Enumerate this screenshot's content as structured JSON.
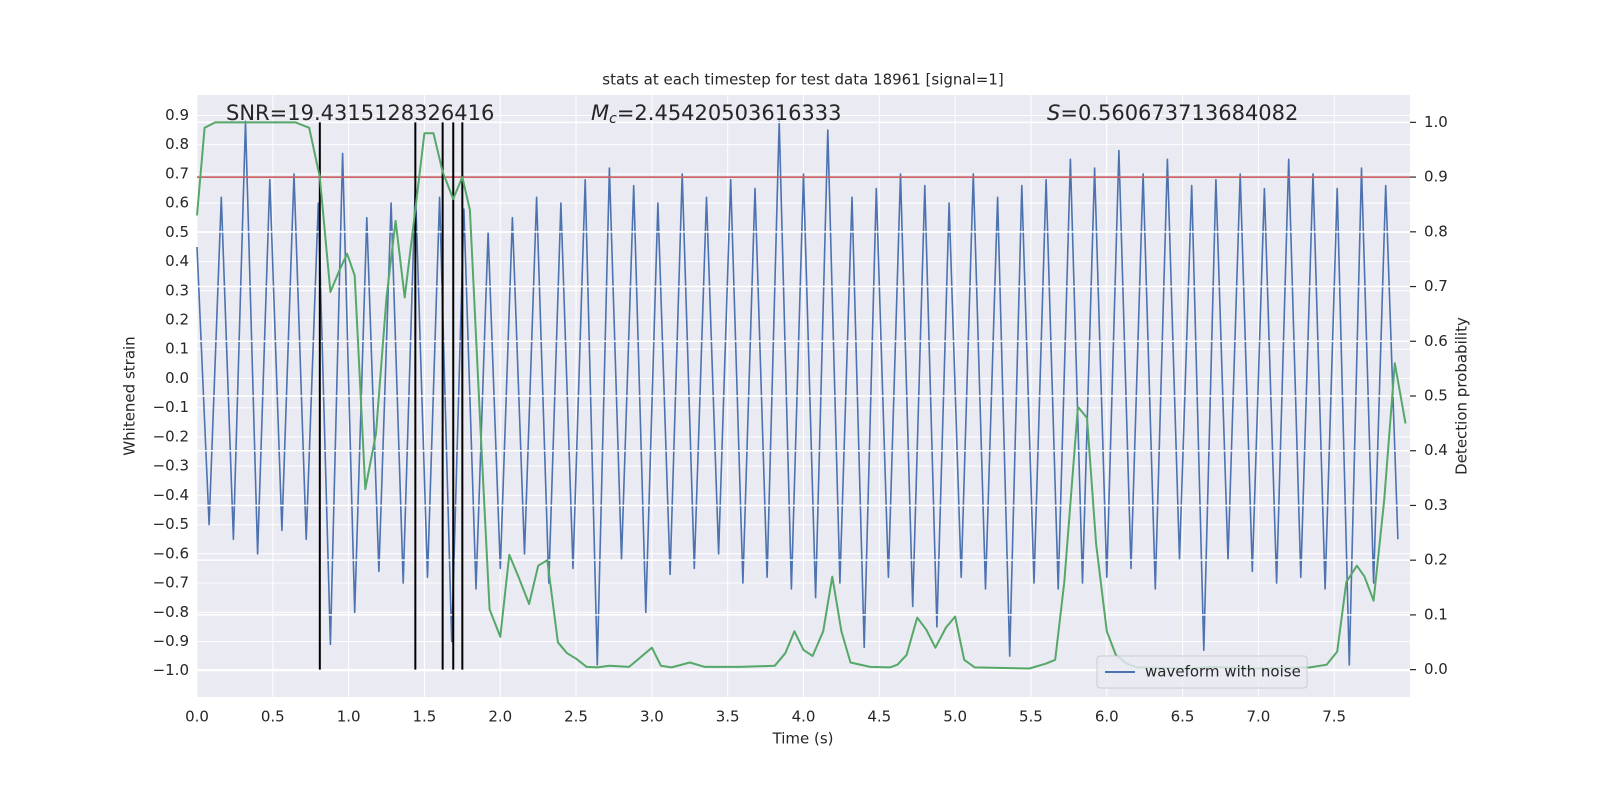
{
  "chart_data": {
    "type": "line",
    "title": "stats at each timestep for test data 18961 [signal=1]",
    "xlabel": "Time (s)",
    "ylabel": "Whitened strain",
    "y2label": "Detection probability",
    "annotations": {
      "snr": "SNR=19.4315128326416",
      "mc": {
        "symbol": "M",
        "subscript": "c",
        "text": "=2.45420503616333"
      },
      "s": {
        "symbol": "S",
        "text": "=0.560673713684082"
      }
    },
    "xlim": [
      0,
      8
    ],
    "xticks": [
      {
        "value": 0,
        "label": "0.0"
      },
      0.5,
      {
        "value": 1,
        "label": "1.0"
      },
      1.5,
      {
        "value": 2,
        "label": "2.0"
      },
      2.5,
      {
        "value": 3,
        "label": "3.0"
      },
      3.5,
      {
        "value": 4,
        "label": "4.0"
      },
      4.5,
      {
        "value": 5,
        "label": "5.0"
      },
      5.5,
      {
        "value": 6,
        "label": "6.0"
      },
      6.5,
      {
        "value": 7,
        "label": "7.0"
      },
      7.5
    ],
    "ylim": [
      -1.09,
      0.97
    ],
    "yticks": [
      {
        "value": -1.0,
        "label": "−1.0"
      },
      {
        "value": -0.9,
        "label": "−0.9"
      },
      {
        "value": -0.8,
        "label": "−0.8"
      },
      {
        "value": -0.7,
        "label": "−0.7"
      },
      {
        "value": -0.6,
        "label": "−0.6"
      },
      {
        "value": -0.5,
        "label": "−0.5"
      },
      {
        "value": -0.4,
        "label": "−0.4"
      },
      {
        "value": -0.3,
        "label": "−0.3"
      },
      {
        "value": -0.2,
        "label": "−0.2"
      },
      {
        "value": -0.1,
        "label": "−0.1"
      },
      {
        "value": 0,
        "label": "0.0"
      },
      0.1,
      0.2,
      0.3,
      0.4,
      0.5,
      0.6,
      0.7,
      0.8,
      0.9
    ],
    "y2lim": [
      -0.05,
      1.05
    ],
    "y2ticks": [
      {
        "value": 0,
        "label": "0.0"
      },
      0.1,
      0.2,
      0.3,
      0.4,
      0.5,
      0.6,
      0.7,
      0.8,
      0.9,
      {
        "value": 1,
        "label": "1.0"
      }
    ],
    "grid": true,
    "legend": "lower right",
    "series": [
      {
        "name": "waveform with noise",
        "color": "#4c72b0",
        "x": [
          0,
          0.08,
          0.16,
          0.24,
          0.32,
          0.4,
          0.48,
          0.56,
          0.64,
          0.72,
          0.8,
          0.88,
          0.96,
          1.04,
          1.12,
          1.2,
          1.28,
          1.36,
          1.44,
          1.52,
          1.6,
          1.68,
          1.76,
          1.84,
          1.92,
          2,
          2.08,
          2.16,
          2.24,
          2.32,
          2.4,
          2.48,
          2.56,
          2.64,
          2.72,
          2.8,
          2.88,
          2.96,
          3.04,
          3.12,
          3.2,
          3.28,
          3.36,
          3.44,
          3.52,
          3.6,
          3.68,
          3.76,
          3.84,
          3.92,
          4,
          4.08,
          4.16,
          4.24,
          4.32,
          4.4,
          4.48,
          4.56,
          4.64,
          4.72,
          4.8,
          4.88,
          4.96,
          5.04,
          5.12,
          5.2,
          5.28,
          5.36,
          5.44,
          5.52,
          5.6,
          5.68,
          5.76,
          5.84,
          5.92,
          6,
          6.08,
          6.16,
          6.24,
          6.32,
          6.4,
          6.48,
          6.56,
          6.64,
          6.72,
          6.8,
          6.88,
          6.96,
          7.04,
          7.12,
          7.2,
          7.28,
          7.36,
          7.44,
          7.52,
          7.6,
          7.68,
          7.76,
          7.84,
          7.92
        ],
        "values": [
          0.45,
          -0.5,
          0.62,
          -0.55,
          0.88,
          -0.6,
          0.68,
          -0.52,
          0.7,
          -0.55,
          0.6,
          -0.91,
          0.77,
          -0.8,
          0.55,
          -0.66,
          0.6,
          -0.7,
          0.66,
          -0.68,
          0.62,
          -0.9,
          0.58,
          -0.72,
          0.5,
          -0.65,
          0.55,
          -0.6,
          0.62,
          -0.7,
          0.6,
          -0.65,
          0.68,
          -0.98,
          0.72,
          -0.62,
          0.66,
          -0.8,
          0.6,
          -0.67,
          0.7,
          -0.65,
          0.62,
          -0.6,
          0.68,
          -0.7,
          0.65,
          -0.68,
          0.88,
          -0.72,
          0.7,
          -0.75,
          0.85,
          -0.7,
          0.62,
          -0.92,
          0.65,
          -0.68,
          0.7,
          -0.78,
          0.66,
          -0.85,
          0.6,
          -0.68,
          0.7,
          -0.72,
          0.62,
          -0.95,
          0.66,
          -0.7,
          0.68,
          -0.72,
          0.75,
          -0.7,
          0.72,
          -0.68,
          0.78,
          -0.65,
          0.7,
          -0.72,
          0.75,
          -0.62,
          0.66,
          -0.93,
          0.68,
          -0.62,
          0.7,
          -0.66,
          0.65,
          -0.7,
          0.75,
          -0.68,
          0.7,
          -0.72,
          0.65,
          -0.98,
          0.72,
          -0.7,
          0.66,
          -0.55
        ]
      },
      {
        "color": "#55a868",
        "axis": "y2",
        "x": [
          0,
          0.05,
          0.12,
          0.65,
          0.74,
          0.81,
          0.88,
          0.94,
          0.99,
          1.04,
          1.11,
          1.18,
          1.25,
          1.31,
          1.37,
          1.44,
          1.5,
          1.56,
          1.62,
          1.69,
          1.75,
          1.8,
          1.87,
          1.93,
          2.0,
          2.06,
          2.12,
          2.19,
          2.25,
          2.31,
          2.38,
          2.44,
          2.5,
          2.57,
          2.64,
          2.72,
          2.85,
          3.0,
          3.06,
          3.13,
          3.25,
          3.35,
          3.58,
          3.81,
          3.88,
          3.94,
          4.0,
          4.06,
          4.13,
          4.19,
          4.25,
          4.31,
          4.44,
          4.57,
          4.62,
          4.68,
          4.75,
          4.81,
          4.87,
          4.94,
          5.0,
          5.06,
          5.13,
          5.49,
          5.6,
          5.66,
          5.72,
          5.81,
          5.87,
          5.93,
          6.0,
          6.06,
          6.13,
          6.2,
          6.55,
          6.68,
          6.94,
          7.34,
          7.45,
          7.52,
          7.58,
          7.65,
          7.7,
          7.76,
          7.83,
          7.9,
          7.97
        ],
        "values": [
          0.83,
          0.99,
          1.0,
          1.0,
          0.99,
          0.9,
          0.69,
          0.73,
          0.76,
          0.72,
          0.33,
          0.43,
          0.68,
          0.82,
          0.68,
          0.84,
          0.98,
          0.98,
          0.91,
          0.86,
          0.9,
          0.84,
          0.44,
          0.11,
          0.06,
          0.21,
          0.17,
          0.12,
          0.19,
          0.2,
          0.05,
          0.03,
          0.02,
          0.005,
          0.004,
          0.007,
          0.005,
          0.04,
          0.007,
          0.004,
          0.013,
          0.005,
          0.005,
          0.007,
          0.03,
          0.07,
          0.036,
          0.025,
          0.07,
          0.17,
          0.07,
          0.013,
          0.005,
          0.004,
          0.009,
          0.027,
          0.095,
          0.073,
          0.04,
          0.077,
          0.097,
          0.018,
          0.004,
          0.002,
          0.011,
          0.018,
          0.16,
          0.48,
          0.46,
          0.23,
          0.07,
          0.027,
          0.011,
          0.004,
          0.002,
          0.005,
          0.002,
          0.004,
          0.009,
          0.033,
          0.16,
          0.19,
          0.17,
          0.126,
          0.31,
          0.56,
          0.45
        ]
      }
    ],
    "threshold": 0.9,
    "threshold_color": "#c44e52",
    "markers": [
      0.81,
      1.44,
      1.62,
      1.69,
      1.75
    ],
    "marker_range": [
      0,
      1
    ],
    "marker_color": "#000000"
  }
}
